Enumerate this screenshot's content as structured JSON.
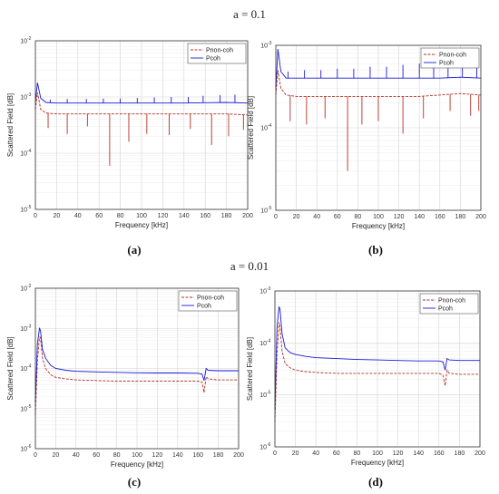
{
  "sections": [
    {
      "title": "a = 0.1"
    },
    {
      "title": "a = 0.01"
    }
  ],
  "colors": {
    "p_non_coh": "#b03020",
    "p_coh": "#1a1ad8",
    "grid": "#d4d4d4",
    "axis": "#333333"
  },
  "chart_data": [
    {
      "type": "line",
      "panel": "(a)",
      "xlabel": "Frequency [kHz]",
      "ylabel": "Scattered Field [dB]",
      "xlim": [
        0,
        200
      ],
      "ylim": [
        1e-05,
        0.01
      ],
      "yscale": "log",
      "grid": true,
      "xticks": [
        "0",
        "20",
        "40",
        "60",
        "80",
        "100",
        "120",
        "140",
        "160",
        "180",
        "200"
      ],
      "yticks": [
        "10^{-5}",
        "10^{-4}",
        "10^{-3}",
        "10^{-2}"
      ],
      "legend": [
        "Pnon-coh",
        "Pcoh"
      ],
      "legend_position": "top-right",
      "series": [
        {
          "name": "Pnon-coh",
          "style": "dashed",
          "x": [
            0,
            2,
            5,
            10,
            20,
            40,
            60,
            80,
            100,
            120,
            140,
            160,
            180,
            200
          ],
          "values": [
            0.0006,
            0.0012,
            0.0006,
            0.00052,
            0.0005,
            0.0005,
            0.0005,
            0.0005,
            0.0005,
            0.0005,
            0.0005,
            0.0005,
            0.0005,
            0.00048
          ],
          "dips": [
            [
              12,
              0.00028
            ],
            [
              30,
              0.00022
            ],
            [
              49,
              0.0003
            ],
            [
              70,
              6e-05
            ],
            [
              88,
              0.00016
            ],
            [
              105,
              0.00022
            ],
            [
              126,
              0.00021
            ],
            [
              146,
              0.00027
            ],
            [
              166,
              0.00014
            ],
            [
              182,
              0.0002
            ],
            [
              196,
              0.00026
            ]
          ]
        },
        {
          "name": "Pcoh",
          "style": "solid",
          "x": [
            0,
            2,
            5,
            10,
            20,
            40,
            60,
            80,
            100,
            120,
            140,
            160,
            180,
            200
          ],
          "values": [
            0.0008,
            0.0018,
            0.00095,
            0.0008,
            0.00078,
            0.00078,
            0.00078,
            0.00078,
            0.00078,
            0.00078,
            0.00078,
            0.00079,
            0.0008,
            0.00078
          ],
          "spikes": [
            [
              14,
              0.0009
            ],
            [
              30,
              0.00092
            ],
            [
              48,
              0.00092
            ],
            [
              64,
              0.00094
            ],
            [
              80,
              0.00094
            ],
            [
              96,
              0.00096
            ],
            [
              112,
              0.00098
            ],
            [
              128,
              0.001
            ],
            [
              144,
              0.001
            ],
            [
              158,
              0.00105
            ],
            [
              174,
              0.00108
            ],
            [
              188,
              0.0011
            ]
          ]
        }
      ]
    },
    {
      "type": "line",
      "panel": "(b)",
      "xlabel": "Frequency [kHz]",
      "ylabel": "Scattered Field [dB]",
      "xlim": [
        0,
        200
      ],
      "ylim": [
        1e-05,
        0.001
      ],
      "yscale": "log",
      "grid": true,
      "xticks": [
        "0",
        "20",
        "40",
        "60",
        "80",
        "100",
        "120",
        "140",
        "160",
        "180",
        "200"
      ],
      "yticks": [
        "10^{-5}",
        "10^{-4}",
        "10^{-3}"
      ],
      "legend": [
        "Pnon-coh",
        "Pcoh"
      ],
      "legend_position": "top-right",
      "series": [
        {
          "name": "Pnon-coh",
          "style": "dashed",
          "x": [
            0,
            2,
            5,
            10,
            20,
            40,
            60,
            80,
            100,
            120,
            140,
            160,
            180,
            200
          ],
          "values": [
            0.00025,
            0.0005,
            0.0003,
            0.00025,
            0.00024,
            0.00024,
            0.00024,
            0.00024,
            0.00024,
            0.00024,
            0.00024,
            0.00025,
            0.00026,
            0.00025
          ],
          "dips": [
            [
              14,
              0.00012
            ],
            [
              30,
              0.00011
            ],
            [
              48,
              0.00013
            ],
            [
              70,
              3e-05
            ],
            [
              84,
              0.00011
            ],
            [
              100,
              0.00012
            ],
            [
              124,
              8.5e-05
            ],
            [
              144,
              0.00013
            ],
            [
              170,
              0.00016
            ],
            [
              190,
              0.00014
            ],
            [
              198,
              0.00016
            ]
          ]
        },
        {
          "name": "Pcoh",
          "style": "solid",
          "x": [
            0,
            2,
            5,
            10,
            20,
            40,
            60,
            80,
            100,
            120,
            140,
            160,
            180,
            200
          ],
          "values": [
            0.0003,
            0.0009,
            0.00048,
            0.0004,
            0.0004,
            0.0004,
            0.0004,
            0.0004,
            0.0004,
            0.0004,
            0.0004,
            0.0004,
            0.00041,
            0.0004
          ],
          "spikes": [
            [
              12,
              0.00048
            ],
            [
              28,
              0.0005
            ],
            [
              44,
              0.0005
            ],
            [
              60,
              0.00052
            ],
            [
              76,
              0.00052
            ],
            [
              92,
              0.00055
            ],
            [
              108,
              0.00055
            ],
            [
              124,
              0.00058
            ],
            [
              140,
              0.0006
            ],
            [
              154,
              0.00062
            ],
            [
              168,
              0.00065
            ],
            [
              182,
              0.00068
            ],
            [
              196,
              0.00065
            ]
          ]
        }
      ]
    },
    {
      "type": "line",
      "panel": "(c)",
      "xlabel": "Frequency [kHz]",
      "ylabel": "Scattered Field [dB]",
      "xlim": [
        0,
        200
      ],
      "ylim": [
        1e-06,
        0.01
      ],
      "yscale": "log",
      "grid": true,
      "xticks": [
        "0",
        "20",
        "40",
        "60",
        "80",
        "100",
        "120",
        "140",
        "160",
        "180",
        "200"
      ],
      "yticks": [
        "10^{-6}",
        "10^{-5}",
        "10^{-4}",
        "10^{-3}",
        "10^{-2}"
      ],
      "legend": [
        "Pnon-coh",
        "Pcoh"
      ],
      "legend_position": "top-right",
      "series": [
        {
          "name": "Pnon-coh",
          "style": "dashed",
          "x": [
            0,
            2,
            4,
            5,
            7,
            10,
            15,
            20,
            30,
            40,
            60,
            80,
            100,
            120,
            140,
            160,
            164,
            166,
            168,
            170,
            180,
            200
          ],
          "values": [
            7e-06,
            0.00015,
            0.0006,
            0.0006,
            0.00018,
            0.0001,
            7e-05,
            6e-05,
            5.5e-05,
            5.2e-05,
            5e-05,
            4.8e-05,
            4.8e-05,
            4.8e-05,
            4.8e-05,
            4.8e-05,
            4.6e-05,
            2.5e-05,
            6.2e-05,
            5.5e-05,
            5.2e-05,
            5.2e-05
          ]
        },
        {
          "name": "Pcoh",
          "style": "solid",
          "x": [
            0,
            2,
            4,
            5,
            7,
            10,
            15,
            20,
            30,
            40,
            60,
            80,
            100,
            120,
            140,
            160,
            164,
            166,
            168,
            170,
            180,
            200
          ],
          "values": [
            1.5e-05,
            0.0004,
            0.001,
            0.0009,
            0.0003,
            0.00018,
            0.00012,
            0.0001,
            9e-05,
            8.5e-05,
            8.2e-05,
            8e-05,
            7.8e-05,
            7.7e-05,
            7.7e-05,
            7.6e-05,
            7.2e-05,
            5e-05,
            0.0001,
            9e-05,
            8.8e-05,
            8.8e-05
          ]
        }
      ]
    },
    {
      "type": "line",
      "panel": "(d)",
      "xlabel": "Frequency [kHz]",
      "ylabel": "Scattered Field [dB]",
      "xlim": [
        0,
        200
      ],
      "ylim": [
        1e-06,
        0.001
      ],
      "yscale": "log",
      "grid": true,
      "xticks": [
        "0",
        "20",
        "40",
        "60",
        "80",
        "100",
        "120",
        "140",
        "160",
        "180",
        "200"
      ],
      "yticks": [
        "10^{-6}",
        "10^{-5}",
        "10^{-4}",
        "10^{-3}"
      ],
      "legend": [
        "Pnon-coh",
        "Pcoh"
      ],
      "legend_position": "top-right",
      "series": [
        {
          "name": "Pnon-coh",
          "style": "dashed",
          "x": [
            0,
            2,
            4,
            5,
            7,
            10,
            15,
            20,
            30,
            40,
            60,
            80,
            100,
            120,
            140,
            160,
            164,
            166,
            168,
            170,
            180,
            200
          ],
          "values": [
            3e-06,
            6e-05,
            0.00025,
            0.0002,
            7e-05,
            4e-05,
            3.3e-05,
            3e-05,
            2.8e-05,
            2.7e-05,
            2.6e-05,
            2.6e-05,
            2.6e-05,
            2.6e-05,
            2.6e-05,
            2.6e-05,
            2.4e-05,
            1.5e-05,
            3e-05,
            2.6e-05,
            2.5e-05,
            2.5e-05
          ]
        },
        {
          "name": "Pcoh",
          "style": "solid",
          "x": [
            0,
            2,
            4,
            5,
            7,
            10,
            15,
            20,
            30,
            40,
            60,
            80,
            100,
            120,
            140,
            160,
            164,
            166,
            168,
            170,
            180,
            200
          ],
          "values": [
            5e-06,
            0.0002,
            0.0005,
            0.00045,
            0.00015,
            8e-05,
            6.5e-05,
            6e-05,
            5.5e-05,
            5.2e-05,
            5e-05,
            4.8e-05,
            4.7e-05,
            4.6e-05,
            4.5e-05,
            4.5e-05,
            4.3e-05,
            3e-05,
            5e-05,
            4.7e-05,
            4.6e-05,
            4.6e-05
          ]
        }
      ]
    }
  ]
}
